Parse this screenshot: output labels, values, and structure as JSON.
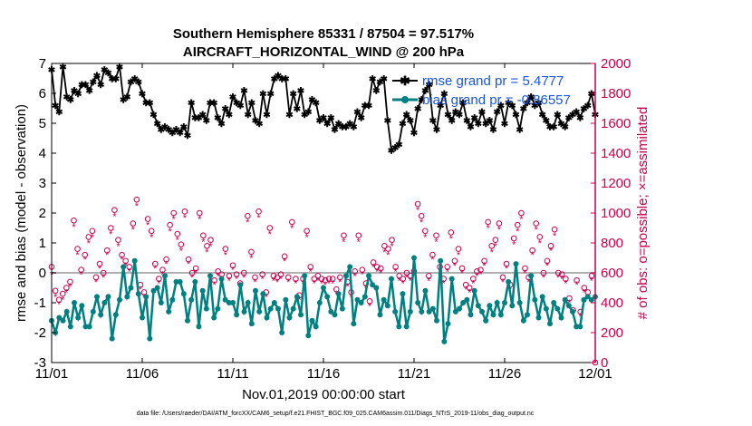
{
  "chart_data": {
    "type": "line",
    "title": "Southern Hemisphere 85331 / 87504 = 97.517%",
    "subtitle": "AIRCRAFT_HORIZONTAL_WIND @ 200 hPa",
    "xlabel": "Nov.01,2019 00:00:00 start",
    "ylabel": "rmse and bias (model - observation)",
    "y2label": "# of obs: o=possible; ×=assimilated",
    "xlim": [
      0,
      30
    ],
    "ylim": [
      -3,
      7
    ],
    "y2lim": [
      0,
      2000
    ],
    "x_ticks": [
      0,
      5,
      10,
      15,
      20,
      25,
      30
    ],
    "x_tick_labels": [
      "11/01",
      "11/06",
      "11/11",
      "11/16",
      "11/21",
      "11/26",
      "12/01"
    ],
    "y_ticks": [
      -3,
      -2,
      -1,
      0,
      1,
      2,
      3,
      4,
      5,
      6,
      7
    ],
    "y_tick_labels": [
      "-3",
      "-2",
      "-1",
      "0",
      "1",
      "2",
      "3",
      "4",
      "5",
      "6",
      "7"
    ],
    "y2_ticks": [
      0,
      200,
      400,
      600,
      800,
      1000,
      1200,
      1400,
      1600,
      1800,
      2000
    ],
    "y2_tick_labels": [
      "0",
      "200",
      "400",
      "600",
      "800",
      "1000",
      "1200",
      "1400",
      "1600",
      "1800",
      "2000"
    ],
    "zero_line": 0,
    "grid": false,
    "legend_position": "top-right",
    "colors": {
      "rmse": "#000000",
      "bias": "#008080",
      "obs": "#c8004f",
      "legend_text": "#1a55e0",
      "zero_line": "#b0b0b0"
    },
    "series": [
      {
        "name": "rmse grand pr = 5.4777",
        "axis": "left",
        "marker": "star",
        "values": [
          6.8,
          5.6,
          5.4,
          6.9,
          5.9,
          5.8,
          6.1,
          6.0,
          6.3,
          6.3,
          6.1,
          6.4,
          6.6,
          6.3,
          6.8,
          6.7,
          6.5,
          6.5,
          6.9,
          5.8,
          5.9,
          6.4,
          6.5,
          6.4,
          6.0,
          5.7,
          5.7,
          5.3,
          5.0,
          4.8,
          4.9,
          4.8,
          4.7,
          4.8,
          4.7,
          4.9,
          4.6,
          5.7,
          5.2,
          5.2,
          5.3,
          5.1,
          5.7,
          5.7,
          5.2,
          5.0,
          5.5,
          5.3,
          5.9,
          5.7,
          5.6,
          6.1,
          5.3,
          5.7,
          5.1,
          5.0,
          6.0,
          5.3,
          6.0,
          6.5,
          6.6,
          6.5,
          6.5,
          5.3,
          6.0,
          5.5,
          6.1,
          5.3,
          5.4,
          5.8,
          5.7,
          5.1,
          5.2,
          5.0,
          5.2,
          4.8,
          5.0,
          4.9,
          4.9,
          5.0,
          4.9,
          5.4,
          5.2,
          5.6,
          5.6,
          6.5,
          6.1,
          6.4,
          6.5,
          5.1,
          4.1,
          4.2,
          4.3,
          5.0,
          5.3,
          5.1,
          4.7,
          5.5,
          5.8,
          6.1,
          6.3,
          5.1,
          4.8,
          5.6,
          6.0,
          5.3,
          5.1,
          5.4,
          5.3,
          5.7,
          5.1,
          4.9,
          5.2,
          5.0,
          5.4,
          5.0,
          5.1,
          4.8,
          5.4,
          5.6,
          5.0,
          5.7,
          5.6,
          5.3,
          4.8,
          5.5,
          5.7,
          5.9,
          5.6,
          5.7,
          5.3,
          5.1,
          4.9,
          4.9,
          5.3,
          5.0,
          4.9,
          5.2,
          5.3,
          5.4,
          5.2,
          5.5,
          5.6,
          6.0,
          5.3
        ]
      },
      {
        "name": "bias grand pr = -0.86557",
        "axis": "left",
        "marker": "dot",
        "values": [
          -1.6,
          -2.0,
          -1.5,
          -1.6,
          -1.3,
          -1.8,
          -1.0,
          -1.5,
          -1.1,
          -1.8,
          -1.8,
          -1.3,
          -0.8,
          -1.4,
          -1.0,
          -0.8,
          -2.2,
          -1.4,
          -0.9,
          0.2,
          -0.8,
          -0.5,
          0.4,
          -0.7,
          -1.5,
          -0.8,
          -2.2,
          -0.6,
          -0.5,
          -1.0,
          -0.1,
          -1.3,
          -0.9,
          -0.3,
          -0.3,
          -0.7,
          -1.6,
          -0.9,
          -0.3,
          -1.8,
          -0.6,
          -1.2,
          -0.1,
          -1.5,
          -1.2,
          -0.2,
          -0.9,
          -1.0,
          -1.0,
          -1.4,
          -0.4,
          -1.3,
          -1.0,
          -1.7,
          -0.6,
          -1.3,
          -0.7,
          -1.5,
          -1.2,
          -1.0,
          -1.2,
          -2.0,
          -0.9,
          -1.5,
          -1.2,
          -0.8,
          -1.4,
          -0.1,
          -2.1,
          -1.6,
          -1.8,
          -1.0,
          -0.5,
          -0.8,
          -1.3,
          -1.4,
          -0.7,
          -1.2,
          -0.1,
          0.2,
          -1.7,
          -0.9,
          -1.0,
          -0.8,
          -0.1,
          -0.4,
          -0.5,
          -1.4,
          -0.9,
          -1.1,
          -0.2,
          -1.3,
          -1.8,
          -0.7,
          -1.8,
          -1.3,
          0.5,
          -1.0,
          -1.3,
          -0.6,
          -1.3,
          -1.2,
          -1.6,
          0.4,
          -2.3,
          -1.7,
          -0.2,
          -1.3,
          -1.2,
          -1.0,
          -0.9,
          -1.4,
          -0.6,
          -1.1,
          -1.3,
          -1.6,
          -1.1,
          -1.4,
          -1.0,
          -1.4,
          -1.0,
          -0.3,
          -1.1,
          0.3,
          -1.0,
          -1.6,
          -1.4,
          -0.1,
          -0.9,
          -1.5,
          -0.8,
          -1.2,
          -1.7,
          -1.0,
          -1.2,
          -1.5,
          -0.9,
          -1.1,
          -1.3,
          -1.8,
          -1.8,
          -0.9,
          -0.8,
          -0.9,
          -0.8
        ]
      },
      {
        "name": "obs possible",
        "axis": "right",
        "marker": "circle",
        "values": [
          640,
          480,
          420,
          460,
          500,
          540,
          950,
          760,
          620,
          720,
          840,
          880,
          570,
          660,
          600,
          750,
          900,
          1020,
          820,
          720,
          680,
          640,
          930,
          1090,
          520,
          470,
          960,
          880,
          660,
          560,
          620,
          690,
          920,
          1000,
          860,
          790,
          1010,
          690,
          600,
          630,
          1000,
          850,
          780,
          820,
          550,
          610,
          590,
          760,
          580,
          650,
          590,
          530,
          600,
          980,
          740,
          570,
          1010,
          590,
          470,
          900,
          580,
          570,
          590,
          710,
          570,
          940,
          560,
          450,
          560,
          880,
          640,
          560,
          580,
          560,
          550,
          560,
          560,
          490,
          570,
          850,
          540,
          470,
          610,
          850,
          620,
          530,
          410,
          670,
          640,
          630,
          780,
          760,
          820,
          640,
          580,
          560,
          600,
          580,
          610,
          1060,
          980,
          880,
          580,
          720,
          850,
          640,
          560,
          640,
          870,
          680,
          760,
          630,
          520,
          500,
          560,
          610,
          620,
          680,
          940,
          780,
          820,
          930,
          570,
          660,
          520,
          830,
          920,
          1000,
          630,
          570,
          750,
          930,
          840,
          600,
          680,
          780,
          890,
          600,
          590,
          560,
          430,
          350,
          550,
          340,
          500,
          470,
          580,
          0
        ]
      },
      {
        "name": "obs assimilated",
        "axis": "right",
        "marker": "x",
        "values": [
          590,
          440,
          390,
          420,
          470,
          510,
          910,
          720,
          590,
          690,
          800,
          840,
          540,
          630,
          570,
          720,
          860,
          980,
          780,
          690,
          650,
          610,
          890,
          1050,
          490,
          440,
          920,
          840,
          630,
          530,
          590,
          660,
          880,
          960,
          820,
          750,
          970,
          660,
          570,
          600,
          960,
          810,
          740,
          780,
          520,
          580,
          560,
          720,
          550,
          620,
          560,
          500,
          570,
          940,
          700,
          540,
          970,
          560,
          440,
          860,
          550,
          540,
          560,
          680,
          540,
          900,
          530,
          420,
          530,
          840,
          610,
          530,
          550,
          530,
          520,
          530,
          530,
          460,
          540,
          810,
          510,
          440,
          580,
          810,
          590,
          500,
          380,
          640,
          610,
          600,
          740,
          720,
          780,
          610,
          550,
          530,
          570,
          550,
          580,
          1020,
          940,
          840,
          550,
          690,
          810,
          610,
          530,
          610,
          830,
          650,
          720,
          600,
          490,
          470,
          530,
          580,
          590,
          650,
          900,
          740,
          780,
          890,
          540,
          630,
          490,
          790,
          880,
          960,
          600,
          540,
          720,
          890,
          800,
          570,
          650,
          750,
          850,
          570,
          560,
          530,
          400,
          320,
          520,
          310,
          470,
          440,
          550,
          0
        ]
      }
    ],
    "footnote": "data file: /Users/raeder/DAI/ATM_forcXX/CAM6_setup/f.e21.FHIST_BGC.f09_025.CAM6assim.011/Diags_NTrS_2019-11/obs_diag_output.nc"
  }
}
